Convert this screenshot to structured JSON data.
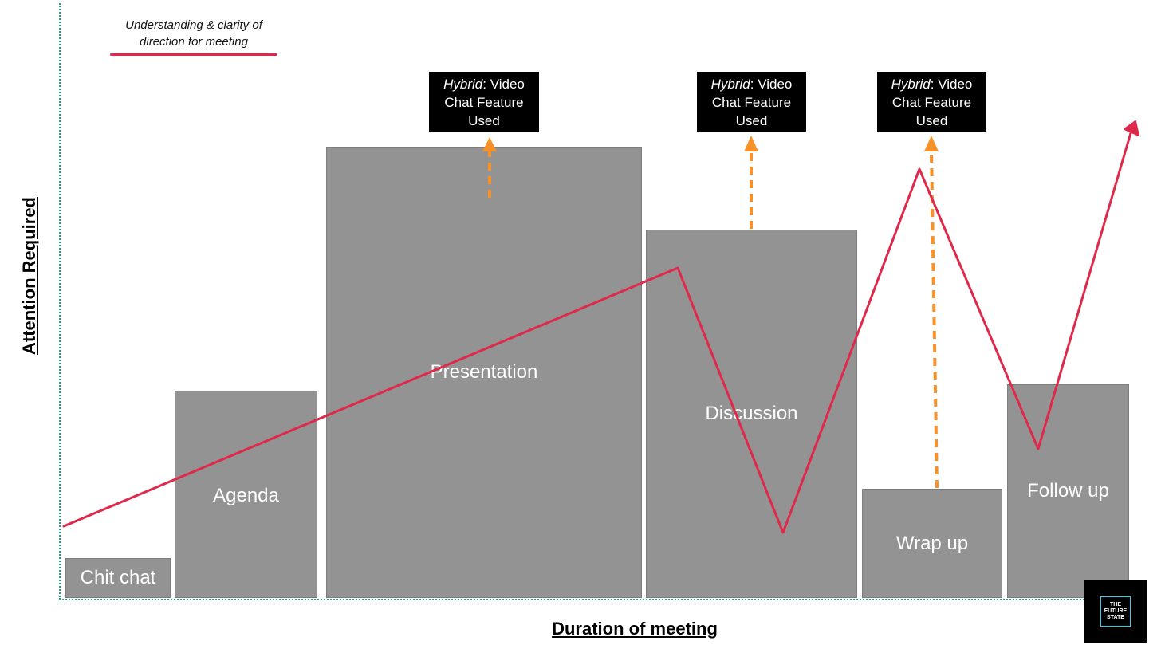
{
  "legend": {
    "label": "Understanding & clarity of direction for meeting",
    "color": "#e0284a"
  },
  "axes": {
    "y_title": "Attention Required",
    "x_title": "Duration of meeting"
  },
  "blocks": [
    {
      "label": "Chit chat"
    },
    {
      "label": "Agenda"
    },
    {
      "label": "Presentation"
    },
    {
      "label": "Discussion"
    },
    {
      "label": "Wrap up"
    },
    {
      "label": "Follow up"
    }
  ],
  "callouts": [
    {
      "prefix": "Hybrid",
      "suffix": ": Video Chat Feature Used"
    },
    {
      "prefix": "Hybrid",
      "suffix": ": Video Chat Feature Used"
    },
    {
      "prefix": "Hybrid",
      "suffix": ": Video Chat Feature Used"
    }
  ],
  "logo": {
    "text": "THE FUTURE STATE"
  },
  "colors": {
    "block": "#939393",
    "arrow": "#f7912a",
    "line": "#e0284a",
    "axis": "#2a9d8f"
  }
}
